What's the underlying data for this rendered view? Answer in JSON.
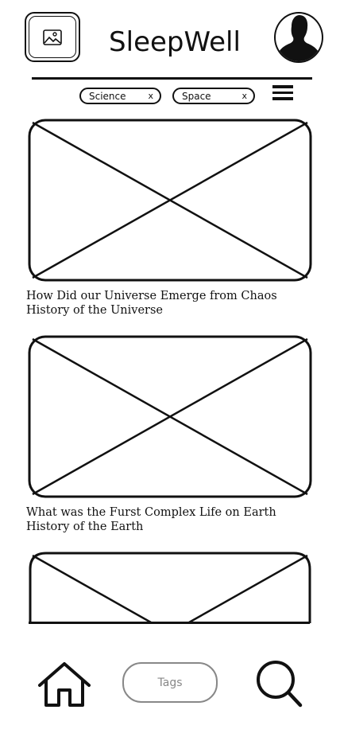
{
  "header": {
    "app_title": "SleepWell",
    "logo_icon": "image-icon",
    "avatar_icon": "user-silhouette-icon"
  },
  "filters": {
    "tags": [
      {
        "label": "Science",
        "remove": "x"
      },
      {
        "label": "Space",
        "remove": "x"
      }
    ],
    "menu_icon": "hamburger-menu-icon"
  },
  "feed": {
    "items": [
      {
        "title": "How Did our Universe Emerge from Chaos",
        "subtitle": "History of the Universe"
      },
      {
        "title": "What was the Furst Complex Life on Earth",
        "subtitle": "History of the Earth"
      }
    ]
  },
  "bottom_nav": {
    "home_icon": "home-icon",
    "tags_label": "Tags",
    "search_icon": "search-icon"
  }
}
